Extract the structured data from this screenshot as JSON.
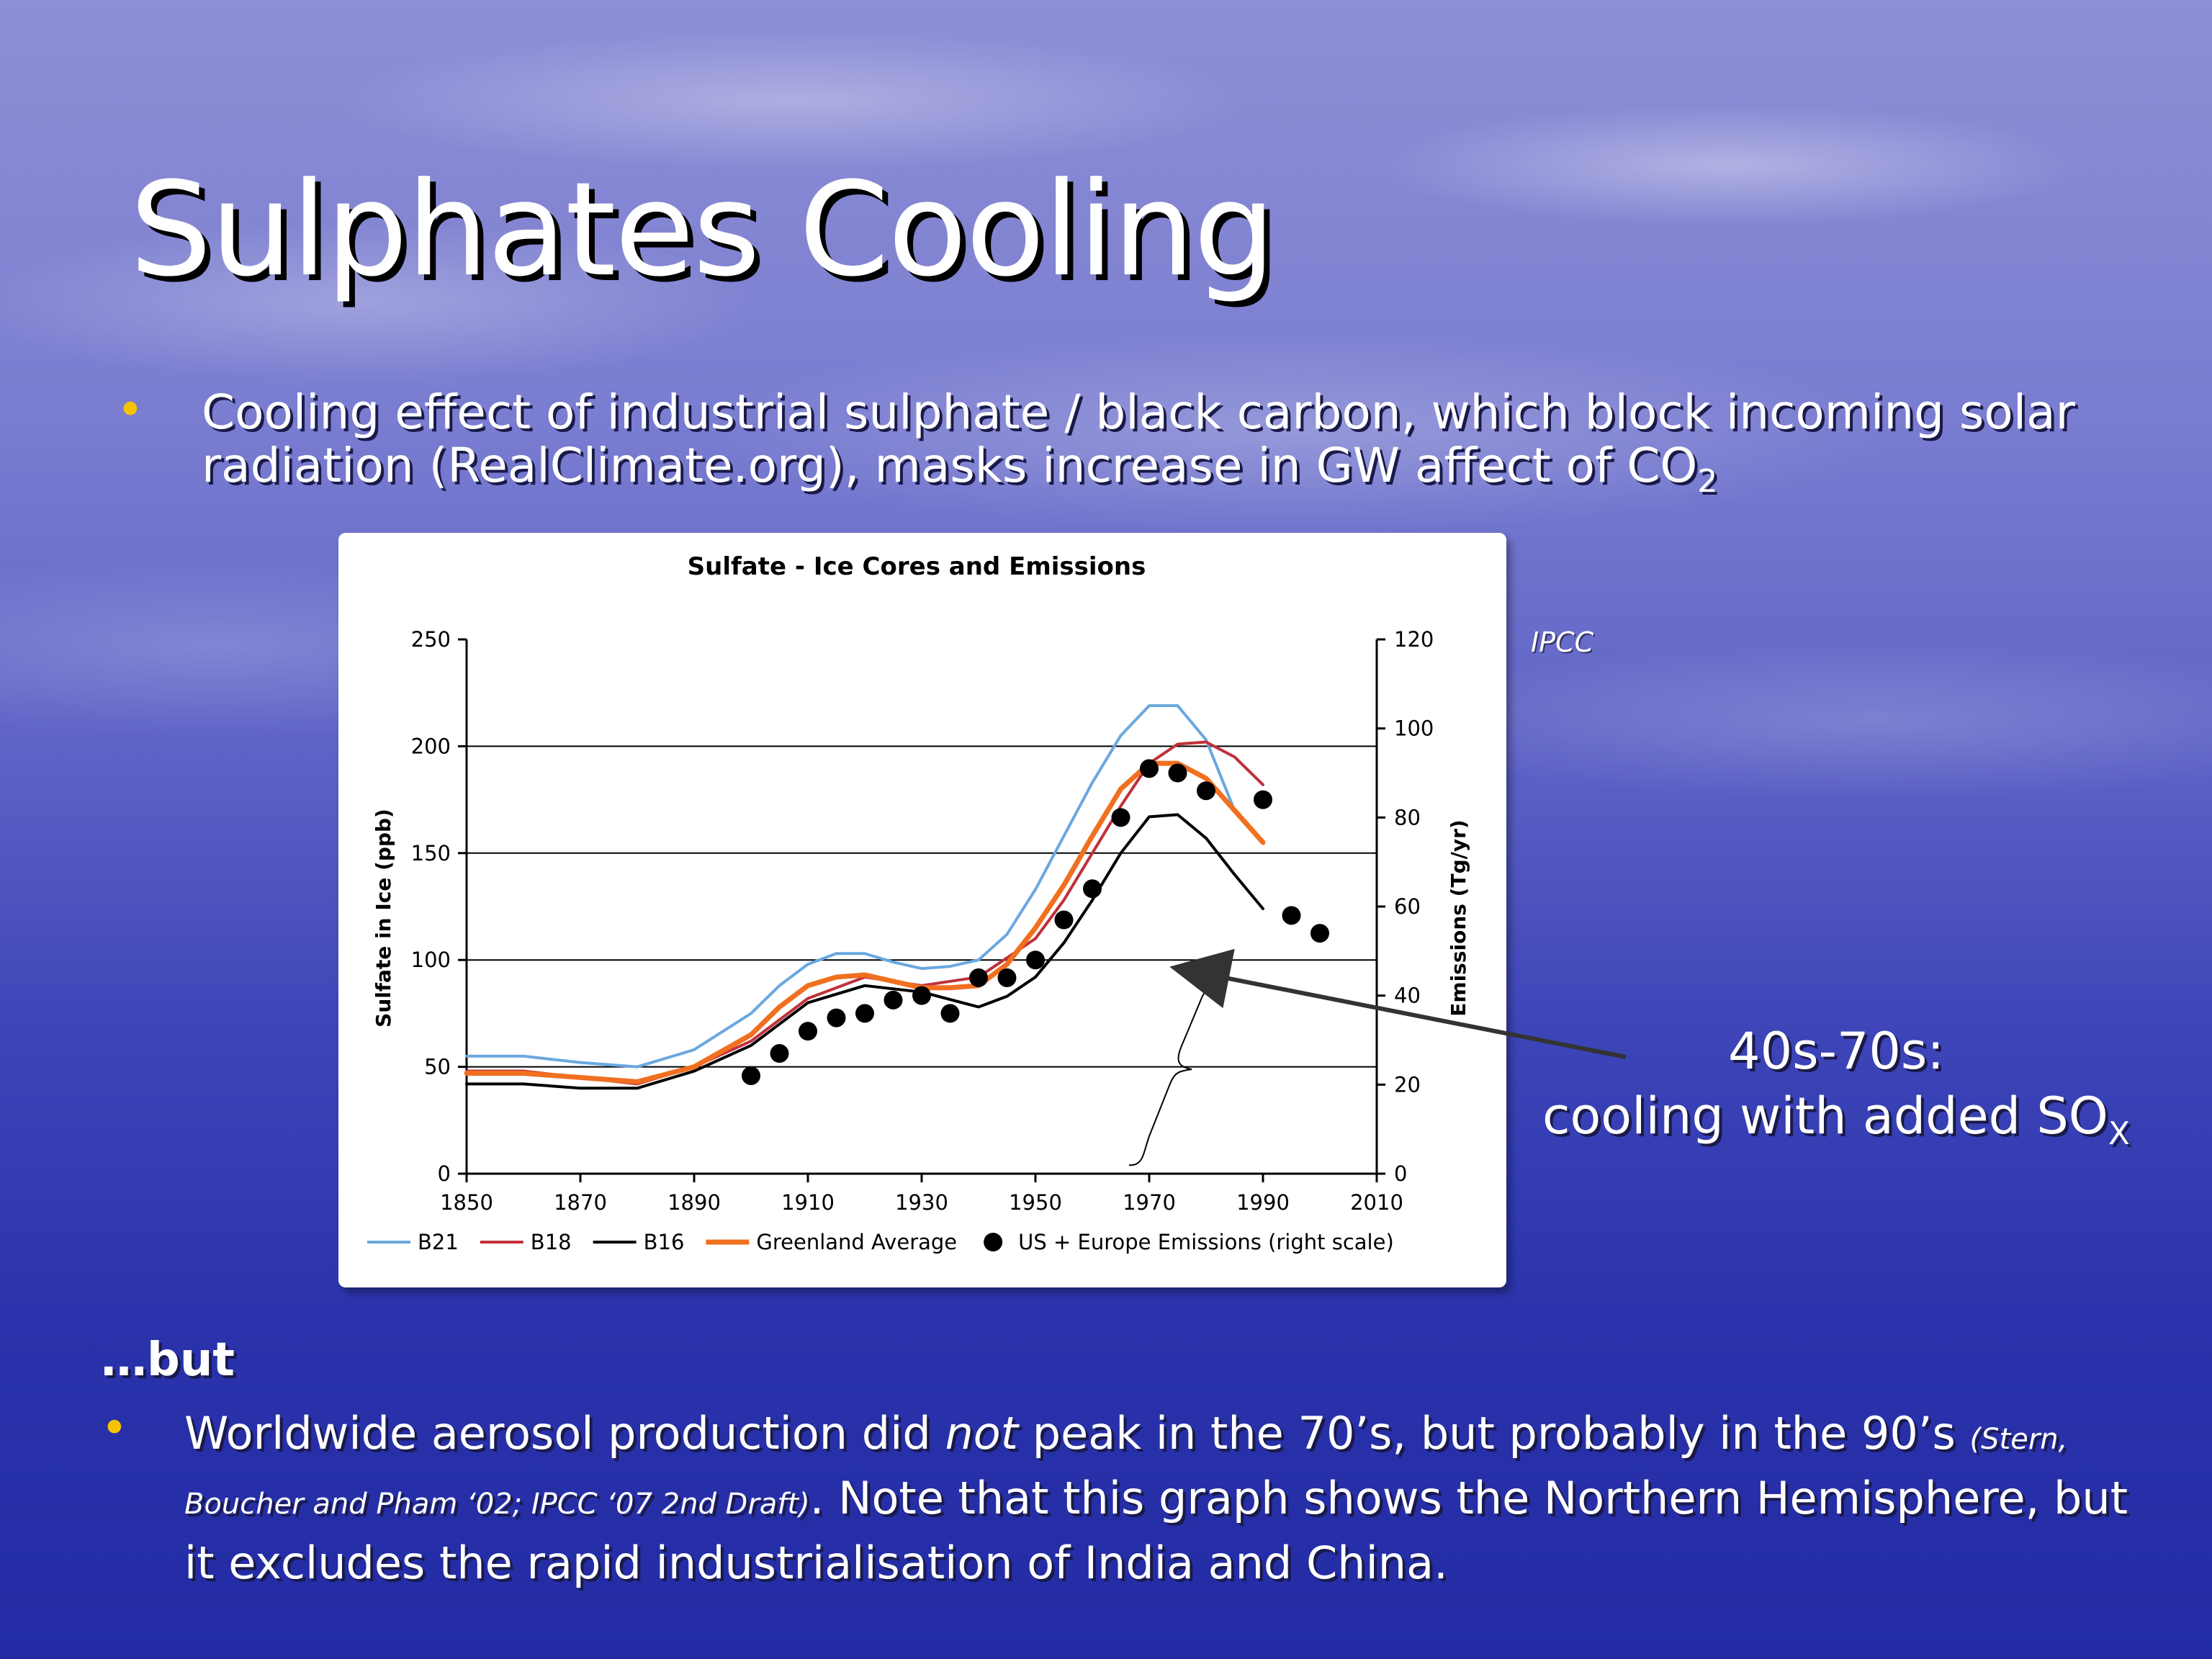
{
  "slide": {
    "title": "Sulphates Cooling",
    "bullet1": {
      "text": "Cooling effect of industrial sulphate / black carbon, which block incoming solar radiation (RealClimate.org), masks increase in GW affect of CO",
      "subscript": "2"
    },
    "source_label": "IPCC",
    "annotation": {
      "line1": "40s-70s:",
      "line2": "cooling with added SO",
      "subscript": "X"
    },
    "but_label": "…but",
    "bullet2": {
      "part1": "Worldwide aerosol production did ",
      "emphasis": "not",
      "part2": " peak in the 70’s, but probably in the 90’s ",
      "citation": "(Stern, Boucher and Pham ‘02; IPCC ‘07 2nd Draft)",
      "part3": ". Note that this graph shows the Northern Hemisphere, but it excludes the rapid industrialisation of India and China."
    },
    "colors": {
      "bullet": "#f5c400",
      "text": "#ffffff"
    }
  },
  "chart_data": {
    "type": "line",
    "title": "Sulfate - Ice Cores and Emissions",
    "ylabel": "Sulfate in Ice (ppb)",
    "y2label": "Emissions (Tg/yr)",
    "xlim": [
      1850,
      2010
    ],
    "ylim": [
      0,
      250
    ],
    "y2lim": [
      0,
      120
    ],
    "x_ticks": [
      1850,
      1870,
      1890,
      1910,
      1930,
      1950,
      1970,
      1990,
      2010
    ],
    "y_ticks": [
      0,
      50,
      100,
      150,
      200,
      250
    ],
    "y2_ticks": [
      0,
      20,
      40,
      60,
      80,
      100,
      120
    ],
    "grid": "horizontal",
    "legend_position": "bottom",
    "series": [
      {
        "name": "B21",
        "color": "#6aa8e0",
        "kind": "line",
        "x": [
          1850,
          1860,
          1870,
          1880,
          1890,
          1900,
          1905,
          1910,
          1915,
          1920,
          1925,
          1930,
          1935,
          1940,
          1945,
          1950,
          1955,
          1960,
          1965,
          1970,
          1975,
          1980,
          1985
        ],
        "y": [
          55,
          55,
          52,
          50,
          58,
          75,
          88,
          98,
          103,
          103,
          99,
          96,
          97,
          100,
          112,
          133,
          158,
          183,
          205,
          219,
          219,
          203,
          170
        ]
      },
      {
        "name": "B18",
        "color": "#c0303a",
        "kind": "line",
        "x": [
          1850,
          1860,
          1870,
          1880,
          1890,
          1900,
          1910,
          1920,
          1930,
          1940,
          1950,
          1955,
          1960,
          1965,
          1970,
          1975,
          1980,
          1985,
          1990
        ],
        "y": [
          48,
          48,
          45,
          42,
          50,
          62,
          82,
          92,
          88,
          92,
          110,
          128,
          150,
          172,
          192,
          201,
          202,
          195,
          182
        ]
      },
      {
        "name": "B16",
        "color": "#000000",
        "kind": "line",
        "x": [
          1850,
          1860,
          1870,
          1880,
          1890,
          1900,
          1910,
          1920,
          1930,
          1940,
          1945,
          1950,
          1955,
          1960,
          1965,
          1970,
          1975,
          1980,
          1985,
          1990
        ],
        "y": [
          42,
          42,
          40,
          40,
          48,
          60,
          80,
          88,
          85,
          78,
          83,
          92,
          108,
          128,
          150,
          167,
          168,
          157,
          140,
          124
        ]
      },
      {
        "name": "Greenland Average",
        "color": "#f07020",
        "kind": "line",
        "x": [
          1850,
          1860,
          1870,
          1880,
          1890,
          1900,
          1905,
          1910,
          1915,
          1920,
          1925,
          1930,
          1935,
          1940,
          1945,
          1950,
          1955,
          1960,
          1965,
          1970,
          1975,
          1980,
          1985,
          1990
        ],
        "y": [
          47,
          47,
          45,
          43,
          50,
          65,
          78,
          88,
          92,
          93,
          90,
          87,
          87,
          88,
          98,
          115,
          135,
          158,
          180,
          192,
          192,
          185,
          170,
          155
        ]
      },
      {
        "name": "US + Europe Emissions (right scale)",
        "color": "#000000",
        "kind": "scatter",
        "x": [
          1900,
          1905,
          1910,
          1915,
          1920,
          1925,
          1930,
          1935,
          1940,
          1945,
          1950,
          1955,
          1960,
          1965,
          1970,
          1975,
          1980,
          1990,
          1995,
          2000
        ],
        "y": [
          22,
          27,
          32,
          35,
          36,
          39,
          40,
          36,
          44,
          44,
          48,
          57,
          64,
          80,
          91,
          90,
          86,
          84,
          58,
          54
        ]
      }
    ]
  }
}
